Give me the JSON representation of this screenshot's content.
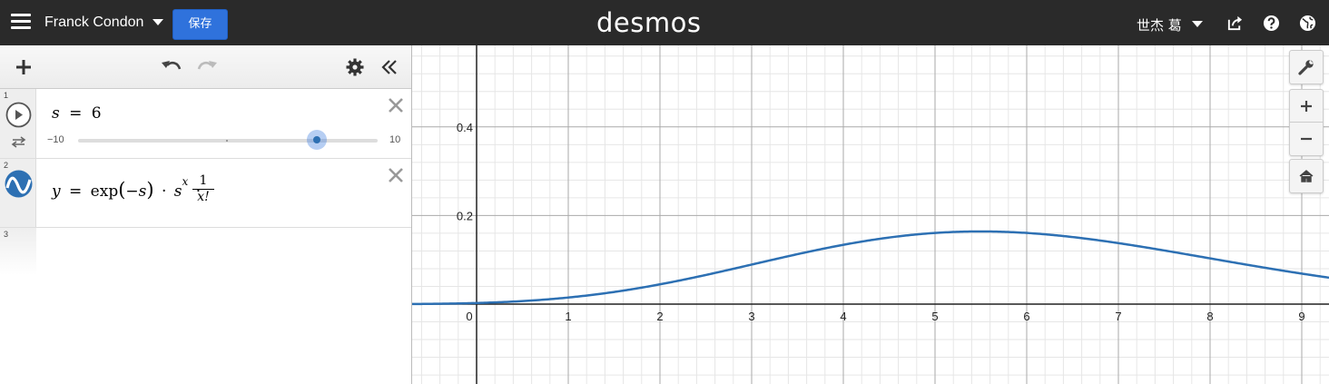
{
  "header": {
    "graph_title": "Franck Condon",
    "save_label": "保存",
    "logo_text": "desmos",
    "user_name": "世杰 葛",
    "icons": [
      "menu-icon",
      "caret-down-icon",
      "share-icon",
      "help-icon",
      "globe-icon"
    ]
  },
  "toolbar": {
    "icons": [
      "add-icon",
      "undo-icon",
      "redo-icon",
      "settings-gear-icon",
      "collapse-panel-icon"
    ]
  },
  "expressions": [
    {
      "index": "1",
      "latex": "s = 6",
      "var": "s",
      "eq": "=",
      "value": "6",
      "slider": {
        "min_label": "−10",
        "max_label": "10",
        "min": -10,
        "max": 10,
        "value": 6
      },
      "icons": [
        "play-icon",
        "loop-icon",
        "delete-icon"
      ]
    },
    {
      "index": "2",
      "latex": "y = exp(−s) · s^x · 1/x!",
      "parts": {
        "y": "y",
        "eq": "=",
        "fn": "exp",
        "arg": "−s",
        "dot": "·",
        "base": "s",
        "exp": "x",
        "num": "1",
        "den": "x!"
      },
      "color": "#2d70b3",
      "icons": [
        "graph-line-icon",
        "delete-icon"
      ]
    },
    {
      "index": "3",
      "latex": ""
    }
  ],
  "graph": {
    "curve_color": "#2d70b3",
    "x_ticks": [
      "0",
      "1",
      "2",
      "3",
      "4",
      "5",
      "6",
      "7",
      "8",
      "9"
    ],
    "y_ticks": [
      "0.2",
      "0.4"
    ],
    "controls": [
      "wrench-icon",
      "zoom-in-icon",
      "zoom-out-icon",
      "home-icon"
    ]
  }
}
